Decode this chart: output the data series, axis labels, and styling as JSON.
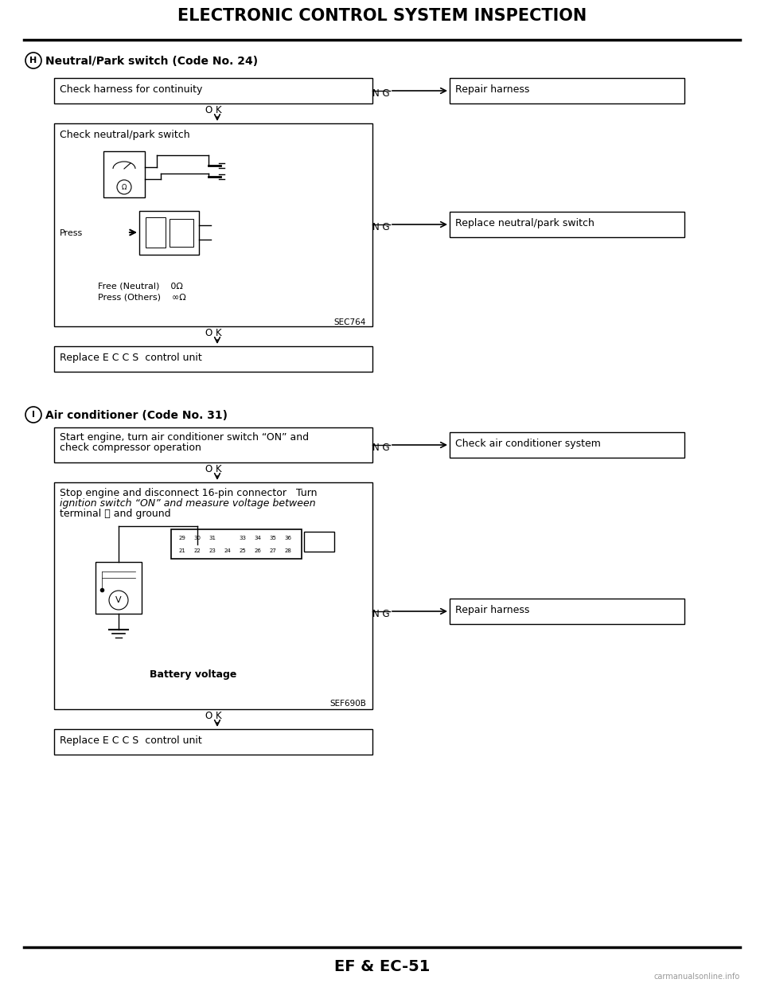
{
  "title": "ELECTRONIC CONTROL SYSTEM INSPECTION",
  "page_label": "EF & EC-51",
  "bg_color": "#ffffff",
  "section_H_label": "Neutral/Park switch (Code No. 24)",
  "section_I_label": "Air conditioner (Code No. 31)",
  "box_H1_text": "Check harness for continuity",
  "box_H1_ng": "Repair harness",
  "box_H2_text": "Check neutral/park switch",
  "box_H2_ng": "Replace neutral/park switch",
  "box_H2_sub1": "Free (Neutral)    0Ω",
  "box_H2_sub2": "Press (Others)    ∞Ω",
  "box_H2_code": "SEC764",
  "box_H3_text": "Replace E C C S  control unit",
  "box_I1_line1": "Start engine, turn air conditioner switch “ON” and",
  "box_I1_line2": "check compressor operation",
  "box_I1_ng": "Check air conditioner system",
  "box_I2_line1": "Stop engine and disconnect 16-pin connector   Turn",
  "box_I2_line2": "ignition switch “ON” and measure voltage between",
  "box_I2_line3": "terminal Ⓖ and ground",
  "box_I2_sub": "Battery voltage",
  "box_I2_code": "SEF690B",
  "box_I2_ng": "Repair harness",
  "box_I3_text": "Replace E C C S  control unit",
  "ok_label": "O K",
  "ng_label": "N G",
  "watermark": "carmanualsonline.info"
}
